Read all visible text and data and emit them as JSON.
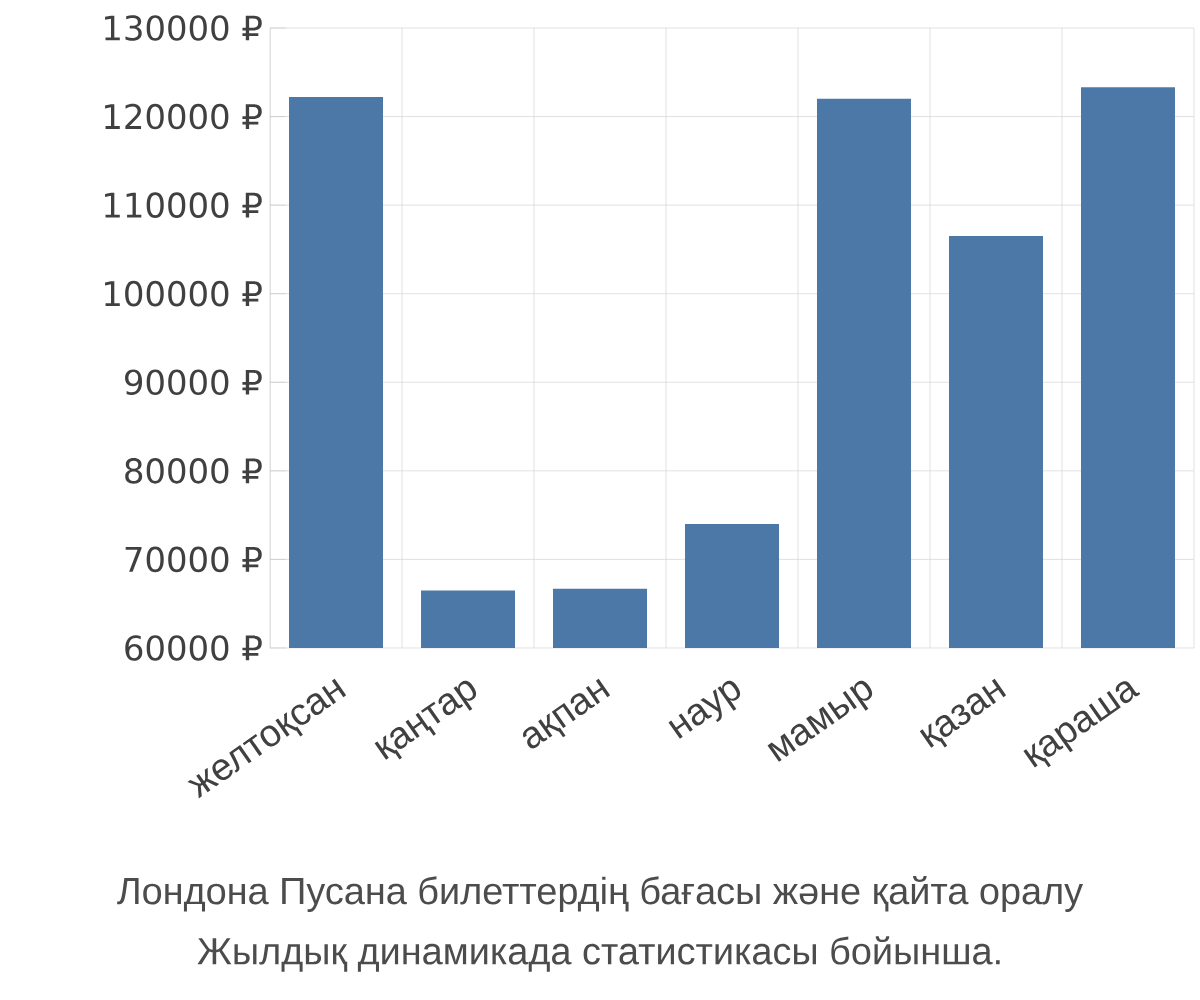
{
  "chart_data": {
    "type": "bar",
    "categories": [
      "желтоқсан",
      "қаңтар",
      "ақпан",
      "наур",
      "мамыр",
      "қазан",
      "қараша"
    ],
    "values": [
      122200,
      66500,
      66700,
      74000,
      122000,
      106500,
      123300
    ],
    "color": "#4c78a8",
    "ylim": [
      60000,
      130000
    ],
    "yticks": [
      {
        "value": 60000,
        "label": "60000 ₽"
      },
      {
        "value": 70000,
        "label": "70000 ₽"
      },
      {
        "value": 80000,
        "label": "80000 ₽"
      },
      {
        "value": 90000,
        "label": "90000 ₽"
      },
      {
        "value": 100000,
        "label": "100000 ₽"
      },
      {
        "value": 110000,
        "label": "110000 ₽"
      },
      {
        "value": 120000,
        "label": "120000 ₽"
      },
      {
        "value": 130000,
        "label": "130000 ₽"
      }
    ],
    "grid": true,
    "annotations": [
      "Лондона Пусана билеттердің бағасы және қайта оралу",
      "Жылдық динамикада статистикасы бойынша."
    ]
  }
}
